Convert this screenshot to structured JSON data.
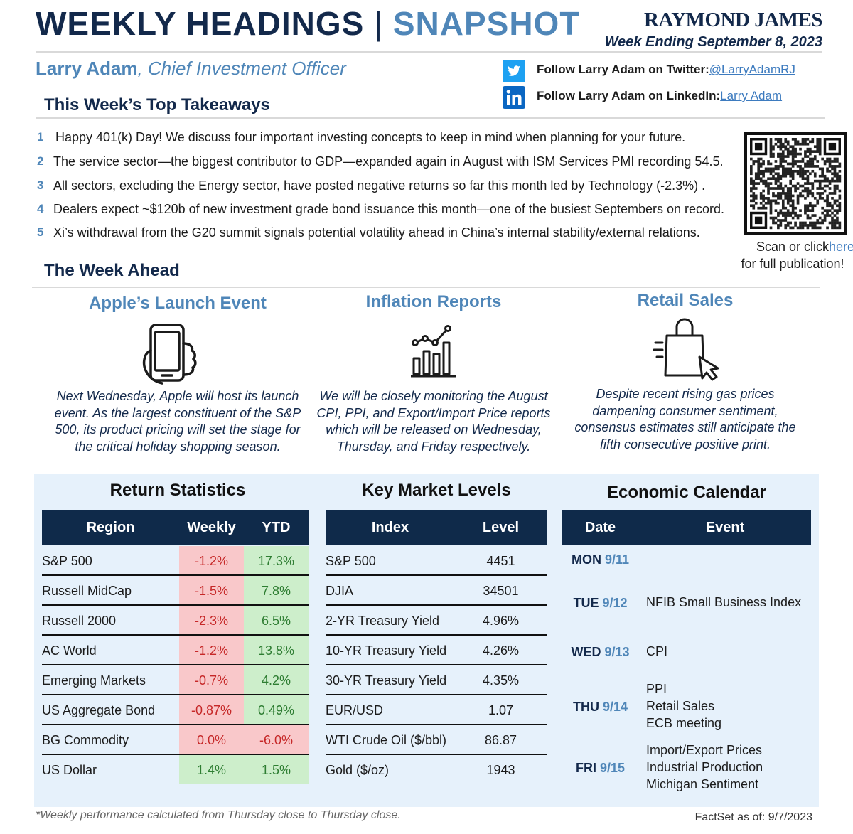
{
  "header": {
    "title": "WEEKLY HEADINGS",
    "separator": "|",
    "title_accent": "SNAPSHOT",
    "brand": "RAYMOND JAMES",
    "week": "Week Ending September 8, 2023"
  },
  "author": {
    "name": "Larry Adam",
    "role": ", Chief Investment Officer"
  },
  "social": [
    {
      "label": "Follow Larry Adam on Twitter:",
      "link": "@LarryAdamRJ"
    },
    {
      "label": "Follow Larry Adam on LinkedIn:",
      "link": "Larry Adam"
    }
  ],
  "takeaways": {
    "heading": "This Week’s Top Takeaways",
    "items": [
      {
        "number": "1",
        "text": "Happy 401(k) Day! We discuss four important investing concepts to keep in mind when planning for your  future."
      },
      {
        "number": "2",
        "text": "The service sector—the biggest contributor to GDP—expanded again in August with ISM Services PMI recording 54.5."
      },
      {
        "number": "3",
        "text": "All sectors, excluding the Energy sector, have posted negative returns so far this month led by Technology (-2.3%) ."
      },
      {
        "number": "4",
        "text": "Dealers expect ~$120b of new investment grade bond issuance this month—one of the busiest Septembers on record."
      },
      {
        "number": "5",
        "text": "Xi’s withdrawal from the G20 summit signals potential volatility ahead in China’s internal stability/external relations."
      }
    ]
  },
  "qr": {
    "text": "Scan or click",
    "link": "here",
    "text2": "for full publication!"
  },
  "week_ahead": {
    "heading": "The Week Ahead",
    "items": [
      {
        "title": "Apple’s Launch Event",
        "lines": [
          "Next Wednesday, Apple will host its launch",
          "event. As the largest constituent of the S&P",
          "500, its product pricing will set the stage for",
          "the critical holiday shopping season."
        ]
      },
      {
        "title": "Inflation Reports",
        "lines": [
          "We will be closely monitoring the August",
          "CPI, PPI, and Export/Import Price reports",
          "which will be released on Wednesday,",
          "Thursday, and Friday respectively."
        ]
      },
      {
        "title": "Retail Sales",
        "lines": [
          "Despite recent rising gas prices",
          "dampening consumer sentiment,",
          "consensus estimates still anticipate the",
          "fifth consecutive positive print."
        ]
      }
    ]
  },
  "returns": {
    "title": "Return Statistics",
    "columns": [
      "Region",
      "Weekly",
      "YTD"
    ],
    "rows": [
      [
        "S&P 500",
        "-1.2%",
        "17.3%"
      ],
      [
        "Russell MidCap",
        "-1.5%",
        "7.8%"
      ],
      [
        "Russell 2000",
        "-2.3%",
        "6.5%"
      ],
      [
        "AC World",
        "-1.2%",
        "13.8%"
      ],
      [
        "Emerging Markets",
        "-0.7%",
        "4.2%"
      ],
      [
        "US Aggregate Bond",
        "-0.87%",
        "0.49%"
      ],
      [
        "BG Commodity",
        "0.0%",
        "-6.0%"
      ],
      [
        "US Dollar",
        "1.4%",
        "1.5%"
      ]
    ],
    "cell_fills": [
      [
        "#f9c8ca",
        "#cdeecb"
      ],
      [
        "#f9c8ca",
        "#cdeecb"
      ],
      [
        "#f9c8ca",
        "#cdeecb"
      ],
      [
        "#f9c8ca",
        "#cdeecb"
      ],
      [
        "#f9c8ca",
        "#cdeecb"
      ],
      [
        "#f9c8ca",
        "#cdeecb"
      ],
      [
        "#f9c8ca",
        "#f9c8ca"
      ],
      [
        "#cdeecb",
        "#cdeecb"
      ]
    ]
  },
  "levels": {
    "title": "Key Market Levels",
    "columns": [
      "Index",
      "Level"
    ],
    "rows": [
      [
        "S&P 500",
        "4451"
      ],
      [
        "DJIA",
        "34501"
      ],
      [
        "2-YR Treasury Yield",
        "4.96%"
      ],
      [
        "10-YR Treasury Yield",
        "4.26%"
      ],
      [
        "30-YR Treasury Yield",
        "4.35%"
      ],
      [
        "EUR/USD",
        "1.07"
      ],
      [
        "WTI Crude Oil ($/bbl)",
        "86.87"
      ],
      [
        "Gold ($/oz)",
        "1943"
      ]
    ]
  },
  "calendar": {
    "title": "Economic Calendar",
    "columns": [
      "Date",
      "Event"
    ],
    "rows": [
      {
        "day": "MON",
        "date": "9/11",
        "events": []
      },
      {
        "day": "TUE",
        "date": "9/12",
        "events": [
          "NFIB Small Business Index"
        ]
      },
      {
        "day": "WED",
        "date": "9/13",
        "events": [
          "CPI"
        ]
      },
      {
        "day": "THU",
        "date": "9/14",
        "events": [
          "PPI",
          "Retail Sales",
          "ECB meeting"
        ]
      },
      {
        "day": "FRI",
        "date": "9/15",
        "events": [
          "Import/Export Prices",
          "Industrial Production",
          "Michigan Sentiment"
        ]
      }
    ]
  },
  "footer": {
    "note": "*Weekly performance calculated from Thursday close to Thursday close.",
    "source": "FactSet as of: 9/7/2023"
  }
}
